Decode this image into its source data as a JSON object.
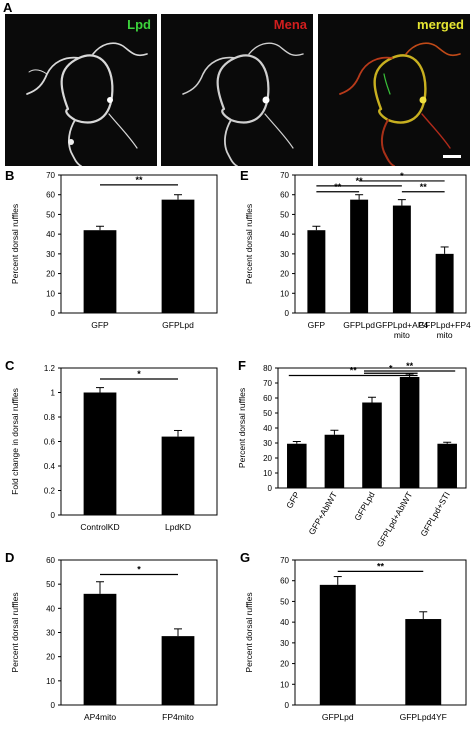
{
  "panel_letters": {
    "A": "A",
    "B": "B",
    "C": "C",
    "D": "D",
    "E": "E",
    "F": "F",
    "G": "G"
  },
  "micrographs": [
    {
      "label": "Lpd",
      "color": "#3cd23c"
    },
    {
      "label": "Mena",
      "color": "#d21e1e"
    },
    {
      "label": "merged",
      "color": "#e6e632"
    }
  ],
  "chart_data": [
    {
      "panel": "B",
      "type": "bar",
      "categories": [
        "GFP",
        "GFPLpd"
      ],
      "values": [
        42,
        57.5
      ],
      "errors": [
        2,
        2.5
      ],
      "ylabel": "Percent dorsal ruffles",
      "ylim": [
        0,
        70
      ],
      "yticks": [
        0,
        10,
        20,
        30,
        40,
        50,
        60,
        70
      ],
      "sig": [
        {
          "a": 0,
          "b": 1,
          "label": "**",
          "level": 65
        }
      ]
    },
    {
      "panel": "C",
      "type": "bar",
      "categories": [
        "ControlKD",
        "LpdKD"
      ],
      "values": [
        1.0,
        0.64
      ],
      "errors": [
        0.04,
        0.05
      ],
      "ylabel": "Fold change in dorsal ruffles",
      "ylim": [
        0,
        1.2
      ],
      "yticks": [
        0,
        0.2,
        0.4,
        0.6,
        0.8,
        1,
        1.2
      ],
      "sig": [
        {
          "a": 0,
          "b": 1,
          "label": "*",
          "level": 1.11
        }
      ]
    },
    {
      "panel": "D",
      "type": "bar",
      "categories": [
        "AP4mito",
        "FP4mito"
      ],
      "values": [
        46,
        28.5
      ],
      "errors": [
        5,
        3
      ],
      "ylabel": "Percent dorsal ruffles",
      "ylim": [
        0,
        60
      ],
      "yticks": [
        0,
        10,
        20,
        30,
        40,
        50,
        60
      ],
      "sig": [
        {
          "a": 0,
          "b": 1,
          "label": "*",
          "level": 54
        }
      ]
    },
    {
      "panel": "E",
      "type": "bar",
      "categories": [
        "GFP",
        "GFPLpd",
        "GFPLpd+AP4 mito",
        "GFPLpd+FP4 mito"
      ],
      "values": [
        42,
        57.5,
        54.5,
        30
      ],
      "errors": [
        2,
        2.5,
        3,
        3.5
      ],
      "ylabel": "Percent dorsal ruffles",
      "ylim": [
        0,
        70
      ],
      "yticks": [
        0,
        10,
        20,
        30,
        40,
        50,
        60,
        70
      ],
      "sig": [
        {
          "a": 0,
          "b": 1,
          "label": "**",
          "level": 61.5
        },
        {
          "a": 0,
          "b": 2,
          "label": "**",
          "level": 64.5
        },
        {
          "a": 1,
          "b": 3,
          "label": "*",
          "level": 67
        },
        {
          "a": 2,
          "b": 3,
          "label": "**",
          "level": 61.5
        }
      ]
    },
    {
      "panel": "F",
      "type": "bar",
      "categories": [
        "GFP",
        "GFP+AblWT",
        "GFPLpd",
        "GFPLpd+AblWT",
        "GFPLpd+STI"
      ],
      "values": [
        29.5,
        35.5,
        57,
        74,
        29.5
      ],
      "errors": [
        1.5,
        3,
        3.5,
        2,
        1
      ],
      "ylabel": "Percent dorsal ruffles",
      "ylim": [
        0,
        80
      ],
      "yticks": [
        0,
        10,
        20,
        30,
        40,
        50,
        60,
        70,
        80
      ],
      "sig": [
        {
          "a": 0,
          "b": 3,
          "label": "**",
          "level": 75
        },
        {
          "a": 2,
          "b": 3,
          "label": "*",
          "level": 76.5
        },
        {
          "a": 2,
          "b": 4,
          "label": "**",
          "level": 78
        }
      ]
    },
    {
      "panel": "G",
      "type": "bar",
      "categories": [
        "GFPLpd",
        "GFPLpd4YF"
      ],
      "values": [
        58,
        41.5
      ],
      "errors": [
        4,
        3.5
      ],
      "ylabel": "Percent dorsal ruffles",
      "ylim": [
        0,
        70
      ],
      "yticks": [
        0,
        10,
        20,
        30,
        40,
        50,
        60,
        70
      ],
      "sig": [
        {
          "a": 0,
          "b": 1,
          "label": "**",
          "level": 64.5
        }
      ]
    }
  ]
}
